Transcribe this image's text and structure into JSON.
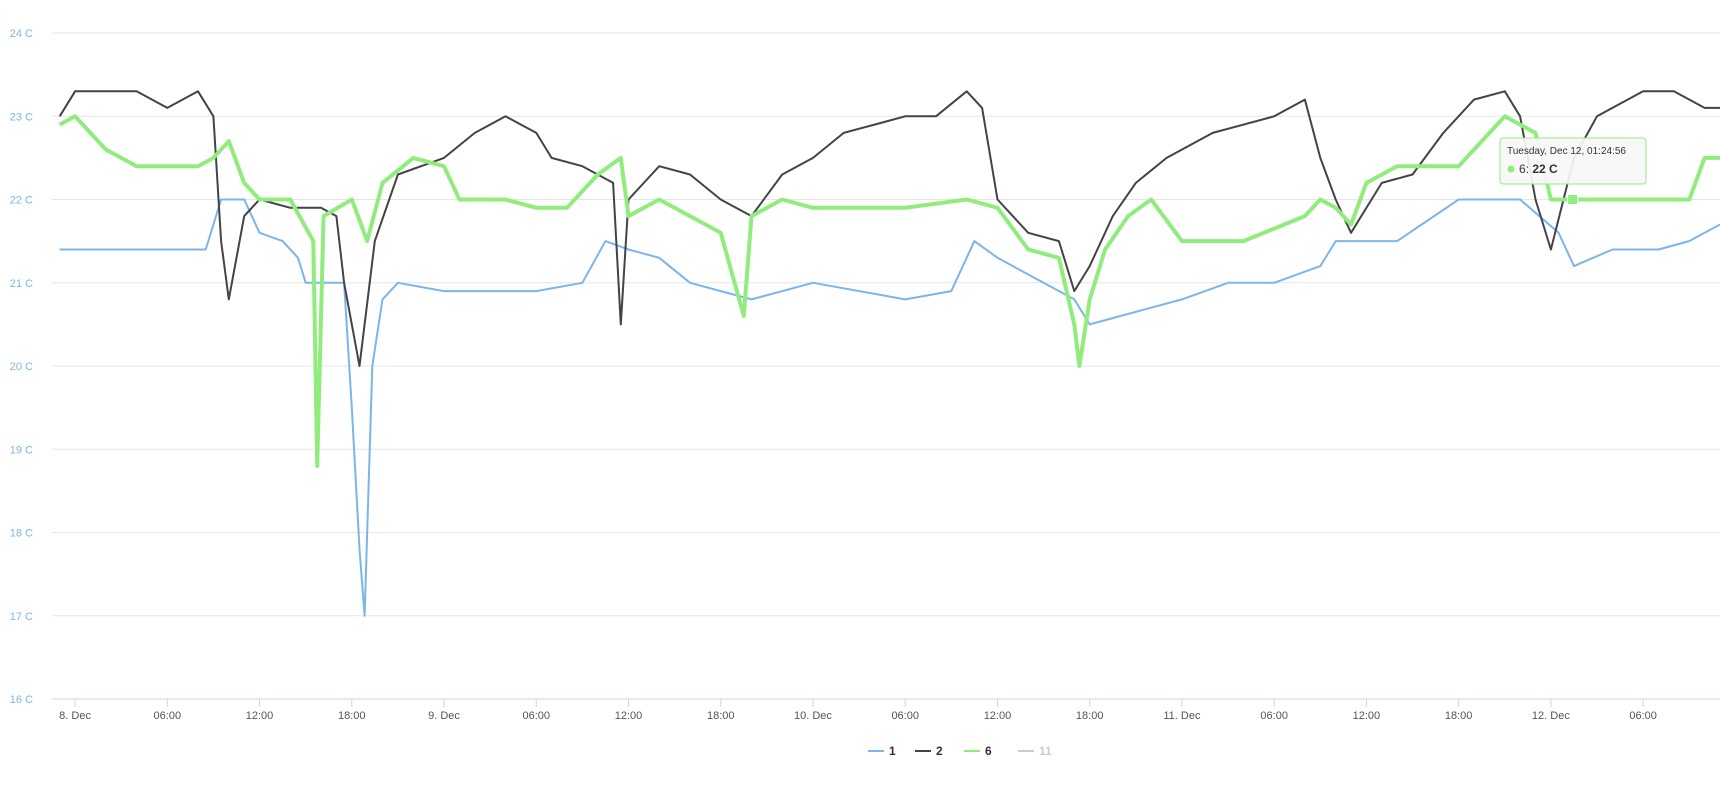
{
  "chart_data": {
    "type": "line",
    "title": "",
    "xlabel": "",
    "ylabel": "",
    "ylim": [
      16,
      24
    ],
    "y_unit": "C",
    "y_ticks": [
      "24 C",
      "23 C",
      "22 C",
      "21 C",
      "20 C",
      "19 C",
      "18 C",
      "17 C",
      "16 C"
    ],
    "x_range": [
      "2023-12-07T22:30",
      "2023-12-12T11:00"
    ],
    "x_ticks": [
      {
        "label": "8. Dec",
        "t": "2023-12-08T00:00"
      },
      {
        "label": "06:00",
        "t": "2023-12-08T06:00"
      },
      {
        "label": "12:00",
        "t": "2023-12-08T12:00"
      },
      {
        "label": "18:00",
        "t": "2023-12-08T18:00"
      },
      {
        "label": "9. Dec",
        "t": "2023-12-09T00:00"
      },
      {
        "label": "06:00",
        "t": "2023-12-09T06:00"
      },
      {
        "label": "12:00",
        "t": "2023-12-09T12:00"
      },
      {
        "label": "18:00",
        "t": "2023-12-09T18:00"
      },
      {
        "label": "10. Dec",
        "t": "2023-12-10T00:00"
      },
      {
        "label": "06:00",
        "t": "2023-12-10T06:00"
      },
      {
        "label": "12:00",
        "t": "2023-12-10T12:00"
      },
      {
        "label": "18:00",
        "t": "2023-12-10T18:00"
      },
      {
        "label": "11. Dec",
        "t": "2023-12-11T00:00"
      },
      {
        "label": "06:00",
        "t": "2023-12-11T06:00"
      },
      {
        "label": "12:00",
        "t": "2023-12-11T12:00"
      },
      {
        "label": "18:00",
        "t": "2023-12-11T18:00"
      },
      {
        "label": "12. Dec",
        "t": "2023-12-12T00:00"
      },
      {
        "label": "06:00",
        "t": "2023-12-12T06:00"
      }
    ],
    "grid": "horizontal",
    "legend_position": "bottom-center",
    "series": [
      {
        "name": "1",
        "color": "#7cb5ec",
        "visible": true,
        "points": [
          [
            "2023-12-07T23:00",
            21.4
          ],
          [
            "2023-12-08T04:00",
            21.4
          ],
          [
            "2023-12-08T08:30",
            21.4
          ],
          [
            "2023-12-08T09:30",
            22.0
          ],
          [
            "2023-12-08T11:00",
            22.0
          ],
          [
            "2023-12-08T12:00",
            21.6
          ],
          [
            "2023-12-08T13:30",
            21.5
          ],
          [
            "2023-12-08T14:30",
            21.3
          ],
          [
            "2023-12-08T15:00",
            21.0
          ],
          [
            "2023-12-08T16:30",
            21.0
          ],
          [
            "2023-12-08T17:30",
            21.0
          ],
          [
            "2023-12-08T18:00",
            19.5
          ],
          [
            "2023-12-08T18:30",
            17.8
          ],
          [
            "2023-12-08T18:50",
            17.0
          ],
          [
            "2023-12-08T19:20",
            20.0
          ],
          [
            "2023-12-08T20:00",
            20.8
          ],
          [
            "2023-12-08T21:00",
            21.0
          ],
          [
            "2023-12-09T00:00",
            20.9
          ],
          [
            "2023-12-09T06:00",
            20.9
          ],
          [
            "2023-12-09T09:00",
            21.0
          ],
          [
            "2023-12-09T10:30",
            21.5
          ],
          [
            "2023-12-09T12:00",
            21.4
          ],
          [
            "2023-12-09T14:00",
            21.3
          ],
          [
            "2023-12-09T16:00",
            21.0
          ],
          [
            "2023-12-09T18:00",
            20.9
          ],
          [
            "2023-12-09T20:00",
            20.8
          ],
          [
            "2023-12-10T00:00",
            21.0
          ],
          [
            "2023-12-10T06:00",
            20.8
          ],
          [
            "2023-12-10T09:00",
            20.9
          ],
          [
            "2023-12-10T10:30",
            21.5
          ],
          [
            "2023-12-10T12:00",
            21.3
          ],
          [
            "2023-12-10T15:00",
            21.0
          ],
          [
            "2023-12-10T17:00",
            20.8
          ],
          [
            "2023-12-10T18:00",
            20.5
          ],
          [
            "2023-12-10T20:00",
            20.6
          ],
          [
            "2023-12-11T00:00",
            20.8
          ],
          [
            "2023-12-11T03:00",
            21.0
          ],
          [
            "2023-12-11T06:00",
            21.0
          ],
          [
            "2023-12-11T09:00",
            21.2
          ],
          [
            "2023-12-11T10:00",
            21.5
          ],
          [
            "2023-12-11T14:00",
            21.5
          ],
          [
            "2023-12-11T18:00",
            22.0
          ],
          [
            "2023-12-11T22:00",
            22.0
          ],
          [
            "2023-12-12T00:30",
            21.6
          ],
          [
            "2023-12-12T01:30",
            21.2
          ],
          [
            "2023-12-12T04:00",
            21.4
          ],
          [
            "2023-12-12T07:00",
            21.4
          ],
          [
            "2023-12-12T09:00",
            21.5
          ],
          [
            "2023-12-12T10:00",
            21.6
          ],
          [
            "2023-12-12T11:00",
            21.7
          ]
        ]
      },
      {
        "name": "2",
        "color": "#434348",
        "visible": true,
        "points": [
          [
            "2023-12-07T23:00",
            23.0
          ],
          [
            "2023-12-08T00:00",
            23.3
          ],
          [
            "2023-12-08T02:00",
            23.3
          ],
          [
            "2023-12-08T04:00",
            23.3
          ],
          [
            "2023-12-08T06:00",
            23.1
          ],
          [
            "2023-12-08T08:00",
            23.3
          ],
          [
            "2023-12-08T09:00",
            23.0
          ],
          [
            "2023-12-08T09:30",
            21.5
          ],
          [
            "2023-12-08T10:00",
            20.8
          ],
          [
            "2023-12-08T11:00",
            21.8
          ],
          [
            "2023-12-08T12:00",
            22.0
          ],
          [
            "2023-12-08T14:00",
            21.9
          ],
          [
            "2023-12-08T16:00",
            21.9
          ],
          [
            "2023-12-08T17:00",
            21.8
          ],
          [
            "2023-12-08T17:30",
            21.0
          ],
          [
            "2023-12-08T18:30",
            20.0
          ],
          [
            "2023-12-08T19:30",
            21.5
          ],
          [
            "2023-12-08T21:00",
            22.3
          ],
          [
            "2023-12-09T00:00",
            22.5
          ],
          [
            "2023-12-09T02:00",
            22.8
          ],
          [
            "2023-12-09T04:00",
            23.0
          ],
          [
            "2023-12-09T06:00",
            22.8
          ],
          [
            "2023-12-09T07:00",
            22.5
          ],
          [
            "2023-12-09T09:00",
            22.4
          ],
          [
            "2023-12-09T11:00",
            22.2
          ],
          [
            "2023-12-09T11:30",
            20.5
          ],
          [
            "2023-12-09T12:00",
            22.0
          ],
          [
            "2023-12-09T14:00",
            22.4
          ],
          [
            "2023-12-09T16:00",
            22.3
          ],
          [
            "2023-12-09T18:00",
            22.0
          ],
          [
            "2023-12-09T20:00",
            21.8
          ],
          [
            "2023-12-09T22:00",
            22.3
          ],
          [
            "2023-12-10T00:00",
            22.5
          ],
          [
            "2023-12-10T02:00",
            22.8
          ],
          [
            "2023-12-10T04:00",
            22.9
          ],
          [
            "2023-12-10T06:00",
            23.0
          ],
          [
            "2023-12-10T08:00",
            23.0
          ],
          [
            "2023-12-10T10:00",
            23.3
          ],
          [
            "2023-12-10T11:00",
            23.1
          ],
          [
            "2023-12-10T12:00",
            22.0
          ],
          [
            "2023-12-10T14:00",
            21.6
          ],
          [
            "2023-12-10T16:00",
            21.5
          ],
          [
            "2023-12-10T17:00",
            20.9
          ],
          [
            "2023-12-10T18:00",
            21.2
          ],
          [
            "2023-12-10T19:30",
            21.8
          ],
          [
            "2023-12-10T21:00",
            22.2
          ],
          [
            "2023-12-10T23:00",
            22.5
          ],
          [
            "2023-12-11T02:00",
            22.8
          ],
          [
            "2023-12-11T06:00",
            23.0
          ],
          [
            "2023-12-11T08:00",
            23.2
          ],
          [
            "2023-12-11T09:00",
            22.5
          ],
          [
            "2023-12-11T10:00",
            22.0
          ],
          [
            "2023-12-11T11:00",
            21.6
          ],
          [
            "2023-12-11T13:00",
            22.2
          ],
          [
            "2023-12-11T15:00",
            22.3
          ],
          [
            "2023-12-11T17:00",
            22.8
          ],
          [
            "2023-12-11T19:00",
            23.2
          ],
          [
            "2023-12-11T21:00",
            23.3
          ],
          [
            "2023-12-11T22:00",
            23.0
          ],
          [
            "2023-12-11T23:00",
            22.0
          ],
          [
            "2023-12-12T00:00",
            21.4
          ],
          [
            "2023-12-12T01:30",
            22.5
          ],
          [
            "2023-12-12T03:00",
            23.0
          ],
          [
            "2023-12-12T06:00",
            23.3
          ],
          [
            "2023-12-12T08:00",
            23.3
          ],
          [
            "2023-12-12T10:00",
            23.1
          ],
          [
            "2023-12-12T11:00",
            23.1
          ]
        ]
      },
      {
        "name": "6",
        "color": "#90ed7d",
        "visible": true,
        "points": [
          [
            "2023-12-07T23:00",
            22.9
          ],
          [
            "2023-12-08T00:00",
            23.0
          ],
          [
            "2023-12-08T02:00",
            22.6
          ],
          [
            "2023-12-08T04:00",
            22.4
          ],
          [
            "2023-12-08T06:00",
            22.4
          ],
          [
            "2023-12-08T08:00",
            22.4
          ],
          [
            "2023-12-08T09:00",
            22.5
          ],
          [
            "2023-12-08T10:00",
            22.7
          ],
          [
            "2023-12-08T11:00",
            22.2
          ],
          [
            "2023-12-08T12:00",
            22.0
          ],
          [
            "2023-12-08T14:00",
            22.0
          ],
          [
            "2023-12-08T15:30",
            21.5
          ],
          [
            "2023-12-08T15:45",
            18.8
          ],
          [
            "2023-12-08T16:10",
            21.8
          ],
          [
            "2023-12-08T18:00",
            22.0
          ],
          [
            "2023-12-08T19:00",
            21.5
          ],
          [
            "2023-12-08T20:00",
            22.2
          ],
          [
            "2023-12-08T22:00",
            22.5
          ],
          [
            "2023-12-09T00:00",
            22.4
          ],
          [
            "2023-12-09T01:00",
            22.0
          ],
          [
            "2023-12-09T04:00",
            22.0
          ],
          [
            "2023-12-09T06:00",
            21.9
          ],
          [
            "2023-12-09T08:00",
            21.9
          ],
          [
            "2023-12-09T10:00",
            22.3
          ],
          [
            "2023-12-09T11:30",
            22.5
          ],
          [
            "2023-12-09T12:00",
            21.8
          ],
          [
            "2023-12-09T14:00",
            22.0
          ],
          [
            "2023-12-09T16:00",
            21.8
          ],
          [
            "2023-12-09T18:00",
            21.6
          ],
          [
            "2023-12-09T19:30",
            20.6
          ],
          [
            "2023-12-09T20:00",
            21.8
          ],
          [
            "2023-12-09T22:00",
            22.0
          ],
          [
            "2023-12-10T00:00",
            21.9
          ],
          [
            "2023-12-10T06:00",
            21.9
          ],
          [
            "2023-12-10T10:00",
            22.0
          ],
          [
            "2023-12-10T12:00",
            21.9
          ],
          [
            "2023-12-10T14:00",
            21.4
          ],
          [
            "2023-12-10T16:00",
            21.3
          ],
          [
            "2023-12-10T17:00",
            20.5
          ],
          [
            "2023-12-10T17:20",
            20.0
          ],
          [
            "2023-12-10T18:00",
            20.8
          ],
          [
            "2023-12-10T19:00",
            21.4
          ],
          [
            "2023-12-10T20:30",
            21.8
          ],
          [
            "2023-12-10T22:00",
            22.0
          ],
          [
            "2023-12-11T00:00",
            21.5
          ],
          [
            "2023-12-11T04:00",
            21.5
          ],
          [
            "2023-12-11T08:00",
            21.8
          ],
          [
            "2023-12-11T09:00",
            22.0
          ],
          [
            "2023-12-11T10:00",
            21.9
          ],
          [
            "2023-12-11T11:00",
            21.7
          ],
          [
            "2023-12-11T12:00",
            22.2
          ],
          [
            "2023-12-11T14:00",
            22.4
          ],
          [
            "2023-12-11T16:00",
            22.4
          ],
          [
            "2023-12-11T18:00",
            22.4
          ],
          [
            "2023-12-11T20:00",
            22.8
          ],
          [
            "2023-12-11T21:00",
            23.0
          ],
          [
            "2023-12-11T23:00",
            22.8
          ],
          [
            "2023-12-12T00:00",
            22.0
          ],
          [
            "2023-12-12T01:24",
            22.0
          ],
          [
            "2023-12-12T03:00",
            22.0
          ],
          [
            "2023-12-12T06:00",
            22.0
          ],
          [
            "2023-12-12T09:00",
            22.0
          ],
          [
            "2023-12-12T10:00",
            22.5
          ],
          [
            "2023-12-12T11:00",
            22.5
          ]
        ]
      },
      {
        "name": "11",
        "color": "#cccccc",
        "visible": false,
        "points": []
      }
    ],
    "tooltip": {
      "header": "Tuesday, Dec 12, 01:24:56",
      "series_label": "6:",
      "value_label": "22 C",
      "t": "2023-12-12T01:24:56",
      "y": 22.0,
      "color": "#90ed7d"
    }
  }
}
